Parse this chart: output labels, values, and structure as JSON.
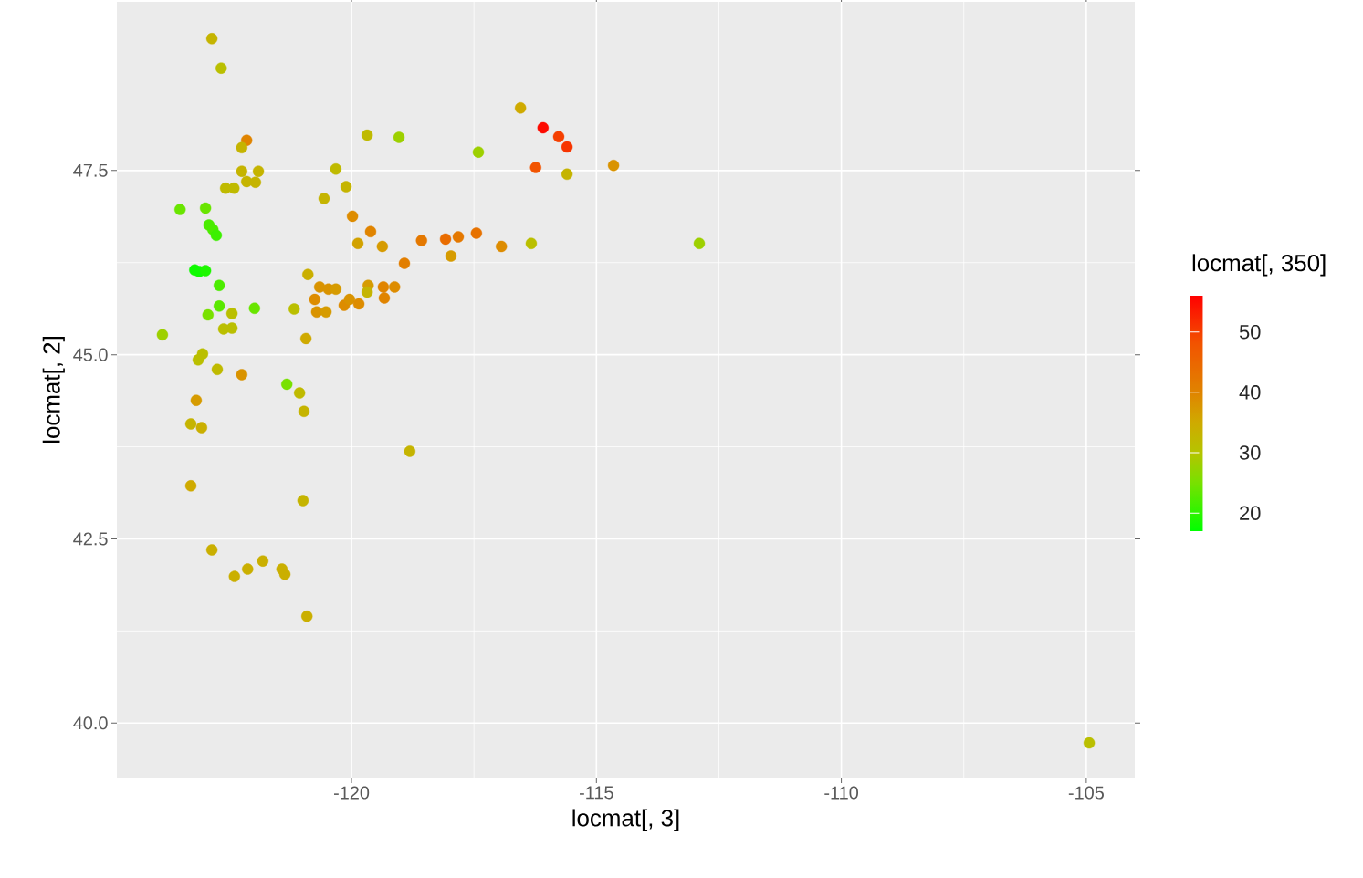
{
  "chart_data": {
    "type": "scatter",
    "xlabel": "locmat[, 3]",
    "ylabel": "locmat[, 2]",
    "clabel": "locmat[, 350]",
    "xlim": [
      -124.79,
      -104.01
    ],
    "ylim": [
      39.26,
      49.79
    ],
    "xticks": [
      -120,
      -115,
      -110,
      -105
    ],
    "yticks": [
      {
        "value": 40,
        "label": "40.0"
      },
      {
        "value": 42.5,
        "label": "42.5"
      },
      {
        "value": 45,
        "label": "45.0"
      },
      47.5
    ],
    "clim": [
      17,
      56
    ],
    "cticks": [
      20,
      30,
      40,
      50
    ],
    "grid": true,
    "marker": "circle",
    "x": [
      -122.85,
      -122.66,
      -122.14,
      -122.24,
      -122.24,
      -121.9,
      -122.14,
      -121.96,
      -122.57,
      -122.4,
      -123.5,
      -122.98,
      -122.91,
      -122.83,
      -122.76,
      -123.2,
      -123.11,
      -122.98,
      -122.7,
      -122.7,
      -122.93,
      -122.44,
      -121.98,
      -123.86,
      -122.61,
      -122.44,
      -123.04,
      -123.13,
      -122.74,
      -122.24,
      -123.17,
      -123.28,
      -123.06,
      -123.28,
      -122.85,
      -122.39,
      -122.12,
      -121.81,
      -121.42,
      -121.36,
      -120.91,
      -120.99,
      -121.32,
      -121.06,
      -120.97,
      -120.93,
      -121.17,
      -120.89,
      -120.56,
      -120.32,
      -120.11,
      -119.98,
      -119.68,
      -119.03,
      -119.87,
      -119.61,
      -119.37,
      -118.92,
      -118.57,
      -118.08,
      -117.97,
      -117.82,
      -117.45,
      -117.41,
      -116.94,
      -116.55,
      -116.09,
      -115.77,
      -115.6,
      -116.24,
      -115.6,
      -114.65,
      -116.33,
      -112.9,
      -118.81,
      -104.94,
      -120.65,
      -120.47,
      -120.32,
      -120.75,
      -120.71,
      -120.52,
      -120.15,
      -120.04,
      -119.85,
      -119.66,
      -119.68,
      -119.35,
      -119.12,
      -119.33
    ],
    "values": [
      49.29,
      48.89,
      47.91,
      47.81,
      47.49,
      47.49,
      47.35,
      47.34,
      47.26,
      47.26,
      46.97,
      46.99,
      46.76,
      46.7,
      46.62,
      46.15,
      46.13,
      46.14,
      45.94,
      45.66,
      45.54,
      45.56,
      45.63,
      45.27,
      45.35,
      45.36,
      45.01,
      44.93,
      44.8,
      44.73,
      44.38,
      44.06,
      44.01,
      43.22,
      42.35,
      41.99,
      42.09,
      42.2,
      42.09,
      42.02,
      41.45,
      43.02,
      44.6,
      44.48,
      44.23,
      45.22,
      45.62,
      46.09,
      47.12,
      47.52,
      47.28,
      46.88,
      47.98,
      47.95,
      46.51,
      46.67,
      46.47,
      46.24,
      46.55,
      46.57,
      46.34,
      46.6,
      46.65,
      47.75,
      46.47,
      48.35,
      48.08,
      47.96,
      47.82,
      47.54,
      47.45,
      47.57,
      46.51,
      46.51,
      43.69,
      39.73,
      45.92,
      45.89,
      45.89,
      45.75,
      45.58,
      45.58,
      45.67,
      45.75,
      45.69,
      45.94,
      45.85,
      45.92,
      45.92,
      45.77
    ],
    "cvalues": [
      33,
      31,
      40,
      33,
      33,
      33,
      33,
      33,
      32,
      32,
      24,
      24,
      22,
      22,
      21,
      18,
      18,
      19,
      22,
      23,
      25,
      31,
      24,
      28,
      31,
      31,
      31,
      31,
      32,
      38,
      37,
      33,
      34,
      35,
      34,
      34,
      34,
      34,
      34,
      34,
      34,
      33,
      25,
      32,
      33,
      35,
      31,
      34,
      33,
      32,
      33,
      39,
      32,
      28,
      36,
      40,
      37,
      41,
      42,
      44,
      37,
      42,
      43,
      28,
      39,
      35,
      55,
      50,
      51,
      48,
      33,
      38,
      31,
      28,
      33,
      31,
      38,
      38,
      37,
      39,
      38,
      37,
      39,
      38,
      39,
      37,
      33,
      40,
      39,
      40
    ]
  }
}
